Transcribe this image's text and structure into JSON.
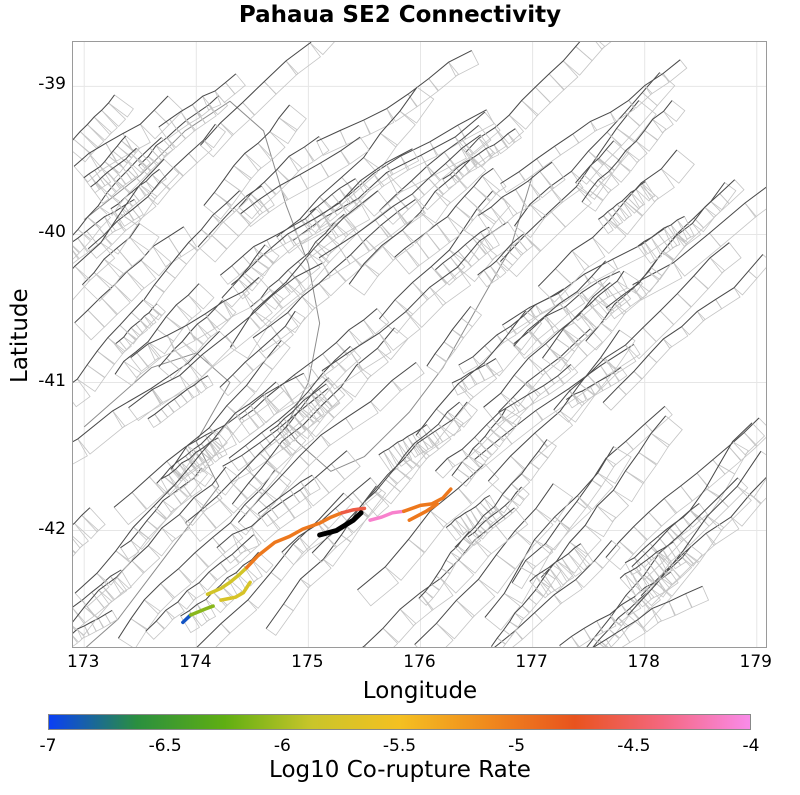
{
  "title": "Pahaua SE2 Connectivity",
  "chart_data": {
    "type": "map",
    "title": "Pahaua SE2 Connectivity",
    "xlabel": "Longitude",
    "ylabel": "Latitude",
    "xlim": [
      172.9,
      179.1
    ],
    "ylim": [
      -42.8,
      -38.7
    ],
    "x_ticks": [
      "173",
      "174",
      "175",
      "176",
      "177",
      "178",
      "179"
    ],
    "y_ticks": [
      "-39",
      "-40",
      "-41",
      "-42"
    ],
    "colorbar": {
      "label": "Log10 Co-rupture Rate",
      "range": [
        -7,
        -4
      ],
      "ticks": [
        "-7",
        "-6.5",
        "-6",
        "-5.5",
        "-5",
        "-4.5",
        "-4"
      ],
      "colors": [
        "#0a3ff5",
        "#2a8f3f",
        "#5fae12",
        "#c9c52a",
        "#f4c021",
        "#f08a1d",
        "#e8531e",
        "#f4677f",
        "#f98be9"
      ]
    },
    "highlighted_fault": {
      "name": "Pahaua SE2",
      "color": "#000000",
      "path": [
        [
          175.1,
          -42.03
        ],
        [
          175.25,
          -42.0
        ],
        [
          175.4,
          -41.93
        ],
        [
          175.47,
          -41.88
        ]
      ]
    },
    "corupture_sections": [
      {
        "log10_rate": -6.9,
        "path": [
          [
            173.88,
            -42.62
          ],
          [
            173.95,
            -42.57
          ]
        ]
      },
      {
        "log10_rate": -6.1,
        "path": [
          [
            173.95,
            -42.57
          ],
          [
            174.08,
            -42.53
          ],
          [
            174.15,
            -42.51
          ]
        ]
      },
      {
        "log10_rate": -5.8,
        "path": [
          [
            174.1,
            -42.43
          ],
          [
            174.22,
            -42.39
          ],
          [
            174.3,
            -42.35
          ],
          [
            174.38,
            -42.3
          ],
          [
            174.45,
            -42.25
          ]
        ]
      },
      {
        "log10_rate": -5.75,
        "path": [
          [
            174.22,
            -42.47
          ],
          [
            174.35,
            -42.45
          ],
          [
            174.42,
            -42.42
          ],
          [
            174.48,
            -42.35
          ]
        ]
      },
      {
        "log10_rate": -5.0,
        "path": [
          [
            174.45,
            -42.25
          ],
          [
            174.55,
            -42.17
          ],
          [
            174.7,
            -42.08
          ],
          [
            174.83,
            -42.04
          ],
          [
            174.95,
            -41.99
          ],
          [
            175.1,
            -41.95
          ],
          [
            175.2,
            -41.91
          ],
          [
            175.3,
            -41.88
          ]
        ]
      },
      {
        "log10_rate": -4.6,
        "path": [
          [
            175.3,
            -41.88
          ],
          [
            175.4,
            -41.86
          ],
          [
            175.5,
            -41.85
          ]
        ]
      },
      {
        "log10_rate": -4.1,
        "path": [
          [
            175.55,
            -41.93
          ],
          [
            175.65,
            -41.91
          ],
          [
            175.75,
            -41.88
          ],
          [
            175.85,
            -41.87
          ]
        ]
      },
      {
        "log10_rate": -5.0,
        "path": [
          [
            175.85,
            -41.87
          ],
          [
            176.0,
            -41.83
          ],
          [
            176.1,
            -41.82
          ],
          [
            176.2,
            -41.78
          ],
          [
            176.27,
            -41.72
          ]
        ]
      },
      {
        "log10_rate": -5.0,
        "path": [
          [
            175.9,
            -41.93
          ],
          [
            176.05,
            -41.87
          ],
          [
            176.15,
            -41.82
          ]
        ]
      }
    ]
  }
}
